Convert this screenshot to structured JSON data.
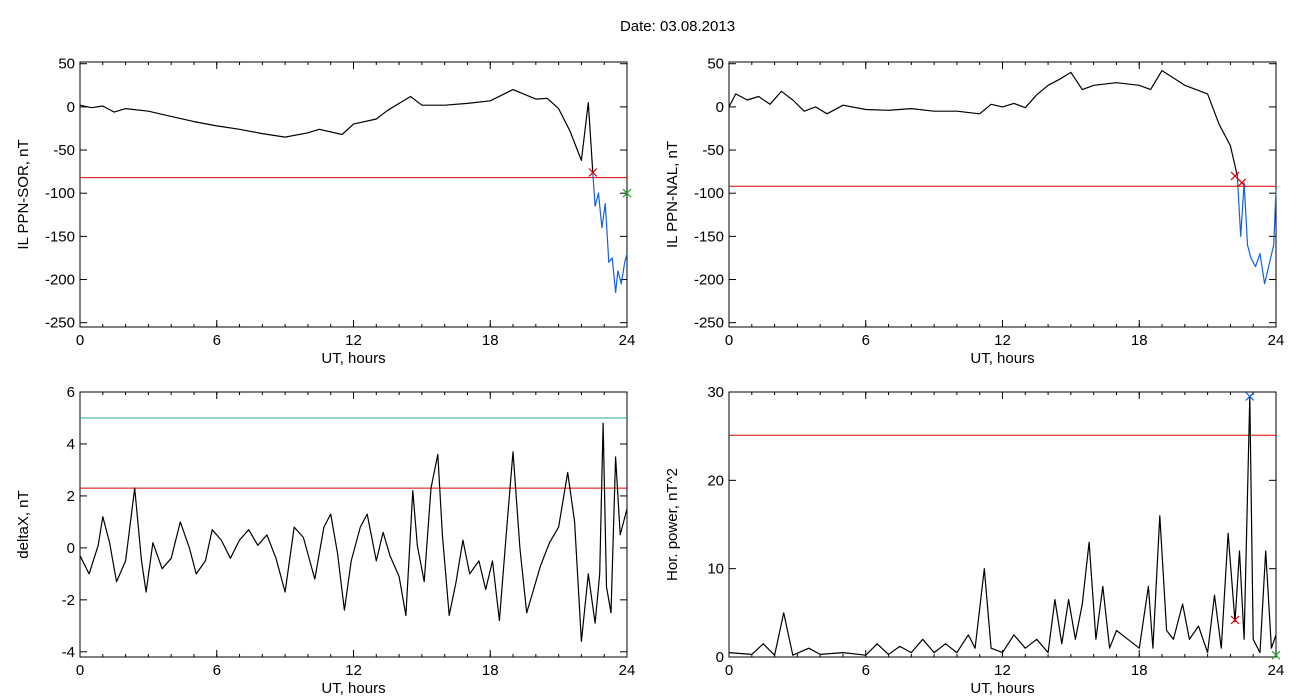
{
  "title": "Date:  03.08.2013",
  "colors": {
    "threshold": "#dd0000",
    "upper": "#2aa5a0",
    "highlight": "#1560d8",
    "onset": "#22aa22",
    "trace": "#000000"
  },
  "chart_data": [
    {
      "id": "p1",
      "type": "line",
      "xlabel": "UT, hours",
      "ylabel": "IL PPN-SOR, nT",
      "xlim": [
        0,
        24
      ],
      "ylim": [
        -255,
        52
      ],
      "xticks": [
        0,
        6,
        12,
        18,
        24
      ],
      "yticks": [
        50,
        0,
        -50,
        -100,
        -150,
        -200,
        -250
      ],
      "hlines": [
        {
          "y": -82,
          "color": "#dd0000"
        }
      ],
      "series": [
        {
          "color": "#000000",
          "points": [
            [
              0,
              2
            ],
            [
              0.5,
              -1
            ],
            [
              1,
              1
            ],
            [
              1.5,
              -6
            ],
            [
              2,
              -2
            ],
            [
              3,
              -5
            ],
            [
              4,
              -11
            ],
            [
              5,
              -17
            ],
            [
              6,
              -22
            ],
            [
              7,
              -26
            ],
            [
              8,
              -31
            ],
            [
              9,
              -35
            ],
            [
              10,
              -30
            ],
            [
              10.5,
              -26
            ],
            [
              11.5,
              -32
            ],
            [
              12,
              -20
            ],
            [
              13,
              -14
            ],
            [
              13.5,
              -4
            ],
            [
              14,
              4
            ],
            [
              14.5,
              12
            ],
            [
              15,
              2
            ],
            [
              16,
              2
            ],
            [
              17,
              4
            ],
            [
              18,
              7
            ],
            [
              19,
              20
            ],
            [
              20,
              9
            ],
            [
              20.5,
              10
            ],
            [
              21,
              -2
            ],
            [
              21.5,
              -28
            ],
            [
              22,
              -62
            ],
            [
              22.3,
              5
            ],
            [
              22.5,
              -76
            ]
          ]
        },
        {
          "color": "#1560d8",
          "points": [
            [
              22.5,
              -76
            ],
            [
              22.6,
              -115
            ],
            [
              22.75,
              -100
            ],
            [
              22.9,
              -140
            ],
            [
              23.05,
              -112
            ],
            [
              23.2,
              -180
            ],
            [
              23.35,
              -175
            ],
            [
              23.5,
              -215
            ],
            [
              23.6,
              -190
            ],
            [
              23.75,
              -205
            ],
            [
              23.9,
              -180
            ],
            [
              24,
              -170
            ]
          ]
        }
      ],
      "markers": [
        {
          "x": 22.5,
          "y": -76,
          "color": "#dd0000"
        },
        {
          "x": 24,
          "y": -100,
          "color": "#22aa22"
        }
      ]
    },
    {
      "id": "p2",
      "type": "line",
      "xlabel": "UT, hours",
      "ylabel": "IL PPN-NAL, nT",
      "xlim": [
        0,
        24
      ],
      "ylim": [
        -255,
        52
      ],
      "xticks": [
        0,
        6,
        12,
        18,
        24
      ],
      "yticks": [
        50,
        0,
        -50,
        -100,
        -150,
        -200,
        -250
      ],
      "hlines": [
        {
          "y": -92,
          "color": "#dd0000"
        }
      ],
      "series": [
        {
          "color": "#000000",
          "points": [
            [
              0,
              0
            ],
            [
              0.3,
              15
            ],
            [
              0.8,
              8
            ],
            [
              1.3,
              12
            ],
            [
              1.8,
              3
            ],
            [
              2.3,
              18
            ],
            [
              2.8,
              8
            ],
            [
              3.3,
              -5
            ],
            [
              3.8,
              0
            ],
            [
              4.3,
              -8
            ],
            [
              5,
              2
            ],
            [
              6,
              -3
            ],
            [
              7,
              -4
            ],
            [
              8,
              -2
            ],
            [
              9,
              -5
            ],
            [
              10,
              -5
            ],
            [
              11,
              -8
            ],
            [
              11.5,
              3
            ],
            [
              12,
              0
            ],
            [
              12.5,
              4
            ],
            [
              13,
              -1
            ],
            [
              13.5,
              14
            ],
            [
              14,
              25
            ],
            [
              14.5,
              32
            ],
            [
              15,
              40
            ],
            [
              15.5,
              20
            ],
            [
              16,
              25
            ],
            [
              17,
              28
            ],
            [
              18,
              25
            ],
            [
              18.5,
              20
            ],
            [
              19,
              42
            ],
            [
              20,
              25
            ],
            [
              21,
              15
            ],
            [
              21.5,
              -20
            ],
            [
              22,
              -45
            ],
            [
              22.3,
              -80
            ]
          ]
        },
        {
          "color": "#1560d8",
          "points": [
            [
              22.3,
              -80
            ],
            [
              22.45,
              -150
            ],
            [
              22.6,
              -88
            ],
            [
              22.75,
              -160
            ],
            [
              22.9,
              -175
            ],
            [
              23.1,
              -185
            ],
            [
              23.3,
              -170
            ],
            [
              23.5,
              -205
            ],
            [
              23.7,
              -182
            ],
            [
              23.9,
              -160
            ],
            [
              24,
              -96
            ]
          ]
        }
      ],
      "markers": [
        {
          "x": 22.2,
          "y": -80,
          "color": "#dd0000"
        },
        {
          "x": 22.5,
          "y": -88,
          "color": "#dd0000"
        }
      ]
    },
    {
      "id": "p3",
      "type": "line",
      "xlabel": "UT, hours",
      "ylabel": "deltaX, nT",
      "xlim": [
        0,
        24
      ],
      "ylim": [
        -4.2,
        6
      ],
      "xticks": [
        0,
        6,
        12,
        18,
        24
      ],
      "yticks": [
        6,
        4,
        2,
        0,
        -2,
        -4
      ],
      "hlines": [
        {
          "y": 5,
          "color": "#2aa5a0"
        },
        {
          "y": 2.3,
          "color": "#dd0000"
        }
      ],
      "series": [
        {
          "color": "#000000",
          "points": [
            [
              0,
              -0.3
            ],
            [
              0.4,
              -1
            ],
            [
              0.8,
              0.1
            ],
            [
              1,
              1.2
            ],
            [
              1.3,
              0.2
            ],
            [
              1.6,
              -1.3
            ],
            [
              2,
              -0.5
            ],
            [
              2.4,
              2.3
            ],
            [
              2.7,
              -0.5
            ],
            [
              2.9,
              -1.7
            ],
            [
              3.2,
              0.2
            ],
            [
              3.6,
              -0.8
            ],
            [
              4,
              -0.4
            ],
            [
              4.4,
              1.0
            ],
            [
              4.8,
              0
            ],
            [
              5.1,
              -1.0
            ],
            [
              5.5,
              -0.5
            ],
            [
              5.8,
              0.7
            ],
            [
              6.2,
              0.3
            ],
            [
              6.6,
              -0.4
            ],
            [
              7,
              0.3
            ],
            [
              7.4,
              0.7
            ],
            [
              7.8,
              0.1
            ],
            [
              8.2,
              0.5
            ],
            [
              8.6,
              -0.4
            ],
            [
              9,
              -1.7
            ],
            [
              9.4,
              0.8
            ],
            [
              9.8,
              0.4
            ],
            [
              10.3,
              -1.2
            ],
            [
              10.7,
              0.8
            ],
            [
              11,
              1.3
            ],
            [
              11.3,
              -0.2
            ],
            [
              11.6,
              -2.4
            ],
            [
              11.9,
              -0.5
            ],
            [
              12.3,
              0.8
            ],
            [
              12.6,
              1.3
            ],
            [
              13,
              -0.5
            ],
            [
              13.3,
              0.6
            ],
            [
              13.6,
              -0.3
            ],
            [
              14,
              -1.1
            ],
            [
              14.3,
              -2.6
            ],
            [
              14.6,
              2.2
            ],
            [
              14.8,
              0.1
            ],
            [
              15.1,
              -1.3
            ],
            [
              15.4,
              2.3
            ],
            [
              15.7,
              3.6
            ],
            [
              15.9,
              0.5
            ],
            [
              16.2,
              -2.6
            ],
            [
              16.5,
              -1.3
            ],
            [
              16.8,
              0.3
            ],
            [
              17.1,
              -1.0
            ],
            [
              17.5,
              -0.5
            ],
            [
              17.8,
              -1.6
            ],
            [
              18.1,
              -0.5
            ],
            [
              18.4,
              -2.8
            ],
            [
              18.7,
              0.5
            ],
            [
              19,
              3.7
            ],
            [
              19.3,
              0
            ],
            [
              19.6,
              -2.5
            ],
            [
              19.9,
              -1.6
            ],
            [
              20.2,
              -0.7
            ],
            [
              20.6,
              0.2
            ],
            [
              21,
              0.8
            ],
            [
              21.4,
              2.9
            ],
            [
              21.7,
              1.0
            ],
            [
              22,
              -3.6
            ],
            [
              22.3,
              -1.0
            ],
            [
              22.6,
              -2.9
            ],
            [
              22.8,
              -1.0
            ],
            [
              22.95,
              4.8
            ],
            [
              23.1,
              -1.5
            ],
            [
              23.3,
              -2.5
            ],
            [
              23.5,
              3.5
            ],
            [
              23.7,
              0.5
            ],
            [
              24,
              1.5
            ]
          ]
        }
      ],
      "markers": []
    },
    {
      "id": "p4",
      "type": "line",
      "xlabel": "UT, hours",
      "ylabel": "Hor. power, nT^2",
      "xlim": [
        0,
        24
      ],
      "ylim": [
        0,
        30
      ],
      "xticks": [
        0,
        6,
        12,
        18,
        24
      ],
      "yticks": [
        30,
        20,
        10,
        0
      ],
      "hlines": [
        {
          "y": 25.1,
          "color": "#dd0000"
        }
      ],
      "series": [
        {
          "color": "#000000",
          "points": [
            [
              0,
              0.5
            ],
            [
              1,
              0.3
            ],
            [
              1.5,
              1.5
            ],
            [
              2,
              0.2
            ],
            [
              2.4,
              5
            ],
            [
              2.8,
              0.2
            ],
            [
              3.5,
              1
            ],
            [
              4,
              0.3
            ],
            [
              5,
              0.5
            ],
            [
              6,
              0.2
            ],
            [
              6.5,
              1.5
            ],
            [
              7,
              0.3
            ],
            [
              7.5,
              1.2
            ],
            [
              8,
              0.5
            ],
            [
              8.5,
              2
            ],
            [
              9,
              0.5
            ],
            [
              9.5,
              1.5
            ],
            [
              10,
              0.5
            ],
            [
              10.5,
              2.5
            ],
            [
              10.8,
              1
            ],
            [
              11.2,
              10
            ],
            [
              11.5,
              1
            ],
            [
              12,
              0.5
            ],
            [
              12.5,
              2.5
            ],
            [
              13,
              1
            ],
            [
              13.5,
              2
            ],
            [
              14,
              0.5
            ],
            [
              14.3,
              6.5
            ],
            [
              14.6,
              1.5
            ],
            [
              14.9,
              6.5
            ],
            [
              15.2,
              2
            ],
            [
              15.5,
              6
            ],
            [
              15.8,
              13
            ],
            [
              16.1,
              2
            ],
            [
              16.4,
              8
            ],
            [
              16.7,
              1
            ],
            [
              17,
              3
            ],
            [
              17.5,
              2
            ],
            [
              18,
              1
            ],
            [
              18.4,
              8
            ],
            [
              18.6,
              1
            ],
            [
              18.9,
              16
            ],
            [
              19.2,
              3
            ],
            [
              19.5,
              2
            ],
            [
              19.9,
              6
            ],
            [
              20.2,
              2
            ],
            [
              20.6,
              3.5
            ],
            [
              21,
              0.5
            ],
            [
              21.3,
              7
            ],
            [
              21.6,
              1
            ],
            [
              21.9,
              14
            ],
            [
              22.2,
              4
            ],
            [
              22.4,
              12
            ],
            [
              22.6,
              2
            ],
            [
              22.85,
              29.5
            ],
            [
              23,
              2
            ],
            [
              23.3,
              0.5
            ],
            [
              23.55,
              12
            ],
            [
              23.8,
              1
            ],
            [
              24,
              2.5
            ]
          ]
        }
      ],
      "markers": [
        {
          "x": 22.2,
          "y": 4.2,
          "color": "#dd0000"
        },
        {
          "x": 22.85,
          "y": 29.5,
          "color": "#1560d8"
        },
        {
          "x": 24,
          "y": 0.2,
          "color": "#22aa22"
        }
      ]
    }
  ]
}
